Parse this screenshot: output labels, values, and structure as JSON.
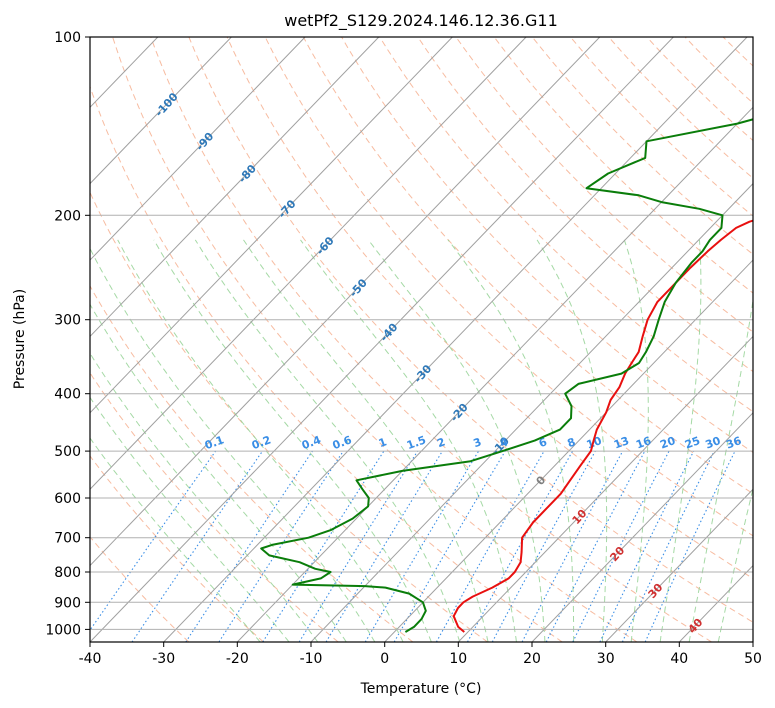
{
  "chart_data": {
    "type": "line",
    "title": "wetPf2_S129.2024.146.12.36.G11",
    "xlabel": "Temperature (°C)",
    "ylabel": "Pressure (hPa)",
    "xlim": [
      -40,
      50
    ],
    "ylim": [
      1050,
      100
    ],
    "y_scale": "log",
    "x_ticks": [
      -40,
      -30,
      -20,
      -10,
      0,
      10,
      20,
      30,
      40,
      50
    ],
    "y_ticks": [
      100,
      200,
      300,
      400,
      500,
      600,
      700,
      800,
      900,
      1000
    ],
    "grid": true,
    "colors": {
      "temperature": "#e8100f",
      "dewpoint": "#0a7d0a",
      "dry_adiabat": "#f4a582",
      "moist_adiabat": "#8fcf8f",
      "mixing_ratio": "#3a8ee6",
      "isotherm": "#a0a0a0",
      "isotherm_label_cold": "#2e78b8",
      "isotherm_label_warm": "#d03030",
      "isobar": "#b0b0b0"
    },
    "series": [
      {
        "key": "temperature",
        "pressure": [
          1010,
          990,
          950,
          920,
          900,
          880,
          850,
          820,
          800,
          770,
          740,
          700,
          660,
          620,
          590,
          560,
          530,
          500,
          480,
          460,
          430,
          410,
          390,
          370,
          355,
          340,
          320,
          300,
          280,
          260,
          245,
          230,
          220,
          210,
          205,
          200,
          190,
          180,
          170,
          160,
          150,
          140,
          130,
          120,
          110,
          100
        ],
        "values": [
          9.5,
          8,
          6,
          5.5,
          5.5,
          6,
          7.5,
          8.5,
          8.5,
          8,
          6.8,
          5,
          4.5,
          4.5,
          4.5,
          4,
          3.5,
          3,
          2,
          1,
          0,
          -1,
          -1.5,
          -2.5,
          -3,
          -3.5,
          -5,
          -6.5,
          -7.5,
          -7.5,
          -7.5,
          -7.3,
          -7,
          -6.5,
          -5.5,
          -3.5,
          1,
          6,
          10,
          14,
          17.5,
          20.5,
          21.5,
          22.5,
          24,
          27
        ]
      },
      {
        "key": "dewpoint",
        "pressure": [
          1010,
          990,
          960,
          930,
          900,
          870,
          850,
          845,
          840,
          820,
          800,
          790,
          770,
          750,
          730,
          720,
          700,
          680,
          650,
          620,
          600,
          580,
          560,
          540,
          520,
          500,
          480,
          460,
          440,
          420,
          400,
          385,
          370,
          355,
          340,
          320,
          300,
          280,
          260,
          240,
          230,
          220,
          210,
          200,
          195,
          190,
          185,
          180,
          170,
          160,
          150,
          140,
          130,
          120,
          110,
          100
        ],
        "values": [
          1.5,
          2,
          2,
          1.5,
          0,
          -3,
          -7,
          -10,
          -20,
          -17,
          -16.5,
          -19,
          -22,
          -27,
          -29,
          -28,
          -24,
          -22,
          -20.5,
          -20,
          -21,
          -23,
          -25,
          -20,
          -12,
          -9,
          -6,
          -4,
          -4,
          -5.5,
          -8,
          -7.5,
          -3,
          -2,
          -2.5,
          -3.5,
          -5,
          -6.5,
          -7.5,
          -8,
          -8,
          -8.5,
          -8.5,
          -10,
          -14,
          -20,
          -24,
          -32,
          -31,
          -28,
          -30,
          -20,
          -13,
          -7,
          -4,
          -2
        ]
      }
    ],
    "isotherm_labels": [
      "-100",
      "-90",
      "-80",
      "-70",
      "-60",
      "-50",
      "-40",
      "-30",
      "-20",
      "-10",
      "0",
      "10",
      "20",
      "30",
      "40"
    ],
    "mixing_ratio_labels": [
      "0.1",
      "0.2",
      "0.4",
      "0.6",
      "1",
      "1.5",
      "2",
      "3",
      "4",
      "6",
      "8",
      "10",
      "13",
      "16",
      "20",
      "25",
      "30",
      "36"
    ]
  }
}
